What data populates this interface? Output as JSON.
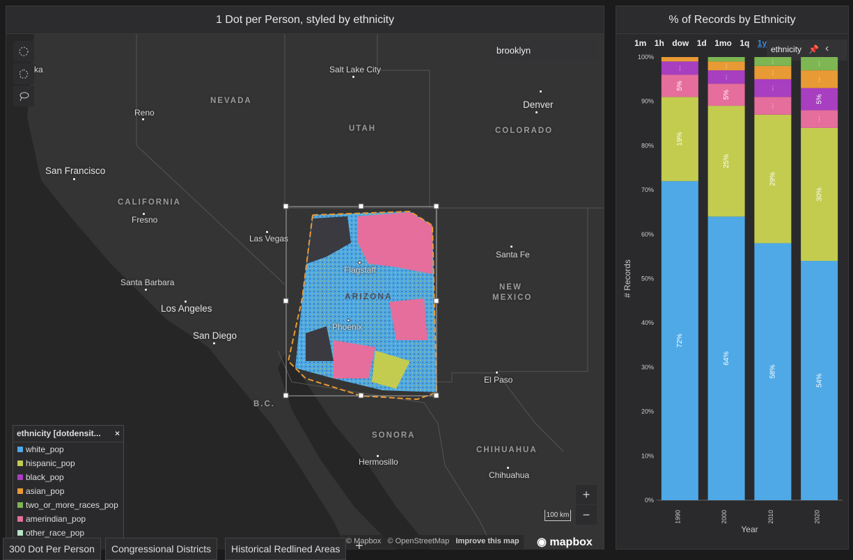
{
  "map_panel": {
    "title": "1 Dot per Person, styled by ethnicity",
    "search_value": "brooklyn",
    "labels": {
      "ka": "ka",
      "salt_lake": "Salt Lake City",
      "nevada": "NEVADA",
      "reno": "Reno",
      "utah": "UTAH",
      "denver": "Denver",
      "colorado": "COLORADO",
      "sf": "San Francisco",
      "california": "CALIFORNIA",
      "fresno": "Fresno",
      "las_vegas": "Las Vegas",
      "santa_fe": "Santa Fe",
      "flagstaff": "Flagstaff",
      "arizona": "ARIZONA",
      "santa_barbara": "Santa Barbara",
      "new_mexico_1": "NEW",
      "new_mexico_2": "MEXICO",
      "la": "Los Angeles",
      "phoenix": "Phoenix",
      "san_diego": "San Diego",
      "el_paso": "El Paso",
      "bc": "B.C.",
      "sonora": "SONORA",
      "chihuahua_state": "CHIHUAHUA",
      "hermosillo": "Hermosillo",
      "chihuahua": "Chihuahua"
    },
    "legend": {
      "title": "ethnicity [dotdensit...",
      "close": "×",
      "items": [
        {
          "label": "white_pop",
          "color": "#4fa9e6"
        },
        {
          "label": "hispanic_pop",
          "color": "#c3cc4f"
        },
        {
          "label": "black_pop",
          "color": "#a83ec0"
        },
        {
          "label": "asian_pop",
          "color": "#e89a35"
        },
        {
          "label": "two_or_more_races_pop",
          "color": "#7db653"
        },
        {
          "label": "amerindian_pop",
          "color": "#e56e9c"
        },
        {
          "label": "other_race_pop",
          "color": "#b6e3c7"
        }
      ]
    },
    "zoom_in": "+",
    "zoom_out": "−",
    "scale": "100 km",
    "attribution": {
      "mapbox": "© Mapbox",
      "osm": "© OpenStreetMap",
      "improve": "Improve this map"
    },
    "logo": "mapbox"
  },
  "tabs": [
    "300 Dot Per Person",
    "Congressional Districts",
    "Historical Redlined Areas"
  ],
  "add_tab": "+",
  "chart_panel": {
    "title": "% of Records by Ethnicity",
    "time_buttons": [
      "1m",
      "1h",
      "dow",
      "1d",
      "1mo",
      "1q",
      "1y"
    ],
    "active_time": "1y",
    "dimension_pill": "ethnicity",
    "colors": {
      "white_pop": "#4fa9e6",
      "hispanic_pop": "#c3cc4f",
      "amerindian_pop": "#e56e9c",
      "black_pop": "#a83ec0",
      "asian_pop": "#e89a35",
      "two_or_more_races_pop": "#7db653"
    }
  },
  "chart_data": {
    "type": "bar",
    "stacked": true,
    "categories": [
      "1990",
      "2000",
      "2010",
      "2020"
    ],
    "xlabel": "Year",
    "ylabel": "# Records",
    "ylim": [
      0,
      100
    ],
    "yticks": [
      "0%",
      "10%",
      "20%",
      "30%",
      "40%",
      "50%",
      "60%",
      "70%",
      "80%",
      "90%",
      "100%"
    ],
    "series": [
      {
        "name": "white_pop",
        "values": [
          72,
          64,
          58,
          54
        ],
        "labels": [
          "72%",
          "64%",
          "58%",
          "54%"
        ]
      },
      {
        "name": "hispanic_pop",
        "values": [
          19,
          25,
          29,
          30
        ],
        "labels": [
          "19%",
          "25%",
          "29%",
          "30%"
        ]
      },
      {
        "name": "amerindian_pop",
        "values": [
          5,
          5,
          4,
          4
        ],
        "labels": [
          "5%",
          "5%",
          "",
          ""
        ]
      },
      {
        "name": "black_pop",
        "values": [
          3,
          3,
          4,
          5
        ],
        "labels": [
          "",
          "",
          "",
          "5%"
        ]
      },
      {
        "name": "asian_pop",
        "values": [
          1,
          2,
          3,
          4
        ],
        "labels": [
          "",
          "",
          "",
          ""
        ]
      },
      {
        "name": "two_or_more_races_pop",
        "values": [
          0,
          1,
          2,
          3
        ],
        "labels": [
          "",
          "",
          "",
          ""
        ]
      }
    ]
  }
}
